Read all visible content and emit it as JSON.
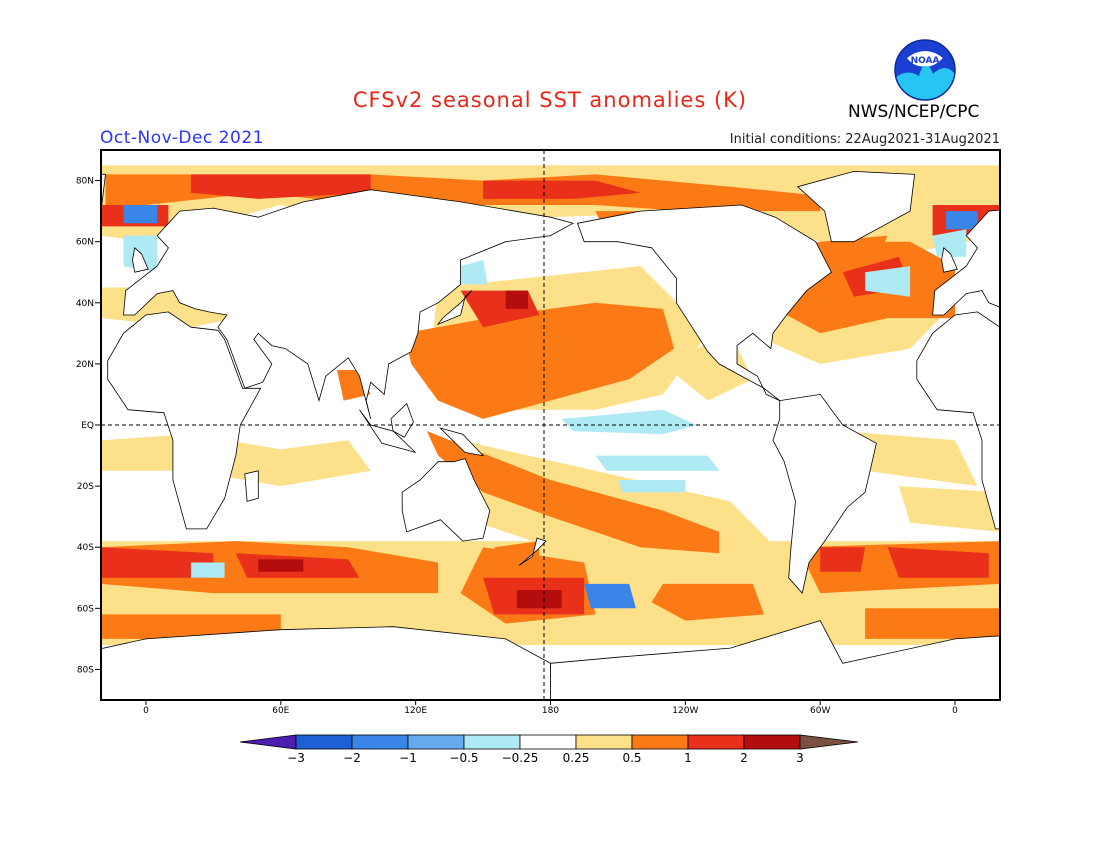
{
  "header": {
    "title": "CFSv2 seasonal SST anomalies (K)",
    "season": "Oct-Nov-Dec 2021",
    "initial_conditions": "Initial conditions: 22Aug2021-31Aug2021",
    "agency": "NWS/NCEP/CPC",
    "logo_text": "NOAA",
    "title_color": "#e8261a",
    "season_color": "#2a33ff"
  },
  "map": {
    "projection": "equirectangular",
    "lon_range": [
      -20,
      380
    ],
    "lat_range": [
      -90,
      90
    ],
    "lat_ticks": [
      "80N",
      "60N",
      "40N",
      "20N",
      "EQ",
      "20S",
      "40S",
      "60S",
      "80S"
    ],
    "lon_ticks": [
      "0",
      "60E",
      "120E",
      "180",
      "120W",
      "60W",
      "0"
    ],
    "reference_lines": [
      "EQ",
      "180"
    ]
  },
  "legend": {
    "labels": [
      "-3",
      "-2",
      "-1",
      "-0.5",
      "-0.25",
      "0.25",
      "0.5",
      "1",
      "2",
      "3"
    ],
    "colors": [
      "#4b1fb0",
      "#1f5fd6",
      "#3a85e8",
      "#66aaf0",
      "#aeeaf4",
      "#ffffff",
      "#fde08a",
      "#fc7a16",
      "#e8301a",
      "#b50d0d",
      "#7a5040"
    ]
  }
}
